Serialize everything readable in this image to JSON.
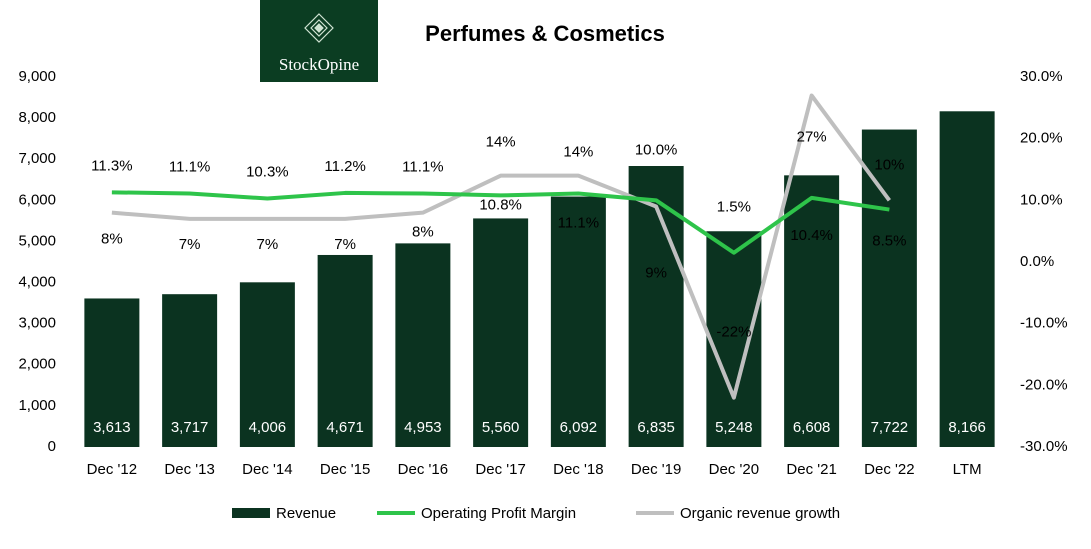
{
  "logo": {
    "text": "StockOpine"
  },
  "chart_data": {
    "type": "bar",
    "title": "Perfumes & Cosmetics",
    "categories": [
      "Dec '12",
      "Dec '13",
      "Dec '14",
      "Dec '15",
      "Dec '16",
      "Dec '17",
      "Dec '18",
      "Dec '19",
      "Dec '20",
      "Dec '21",
      "Dec '22",
      "LTM"
    ],
    "ylim": [
      0,
      9000
    ],
    "yticks": [
      0,
      {
        "value": 1000,
        "label": "1,000"
      },
      {
        "value": 2000,
        "label": "2,000"
      },
      {
        "value": 3000,
        "label": "3,000"
      },
      {
        "value": 4000,
        "label": "4,000"
      },
      {
        "value": 5000,
        "label": "5,000"
      },
      {
        "value": 6000,
        "label": "6,000"
      },
      {
        "value": 7000,
        "label": "7,000"
      },
      {
        "value": 8000,
        "label": "8,000"
      },
      {
        "value": 9000,
        "label": "9,000"
      }
    ],
    "y2lim": [
      -30,
      30
    ],
    "y2ticks": [
      {
        "value": -30,
        "label": "-30.0%"
      },
      {
        "value": -20,
        "label": "-20.0%"
      },
      {
        "value": -10,
        "label": "-10.0%"
      },
      {
        "value": 0,
        "label": "0.0%"
      },
      {
        "value": 10,
        "label": "10.0%"
      },
      {
        "value": 20,
        "label": "20.0%"
      },
      {
        "value": 30,
        "label": "30.0%"
      }
    ],
    "series": [
      {
        "name": "Revenue",
        "type": "bar",
        "color": "#0b3320",
        "values": [
          3613,
          3717,
          4006,
          4671,
          4953,
          5560,
          6092,
          6835,
          5248,
          6608,
          7722,
          8166
        ],
        "value_labels": [
          "3,613",
          "3,717",
          "4,006",
          "4,671",
          "4,953",
          "5,560",
          "6,092",
          "6,835",
          "5,248",
          "6,608",
          "7,722",
          "8,166"
        ]
      },
      {
        "name": "Operating Profit Margin",
        "type": "line",
        "axis": "y2",
        "color": "#2ec44a",
        "values": [
          11.3,
          11.1,
          10.3,
          11.2,
          11.1,
          10.8,
          11.1,
          10.0,
          1.5,
          10.4,
          8.5,
          null
        ],
        "value_labels": [
          "11.3%",
          "11.1%",
          "10.3%",
          "11.2%",
          "11.1%",
          "10.8%",
          "11.1%",
          "10.0%",
          "1.5%",
          "10.4%",
          "8.5%",
          null
        ]
      },
      {
        "name": "Organic revenue growth",
        "type": "line",
        "axis": "y2",
        "color": "#bfbfbf",
        "values": [
          8,
          7,
          7,
          7,
          8,
          14,
          14,
          9,
          -22,
          27,
          10,
          null
        ],
        "value_labels": [
          "8%",
          "7%",
          "7%",
          "7%",
          "8%",
          "14%",
          "14%",
          "9%",
          "-22%",
          "27%",
          "10%",
          null
        ]
      }
    ]
  }
}
